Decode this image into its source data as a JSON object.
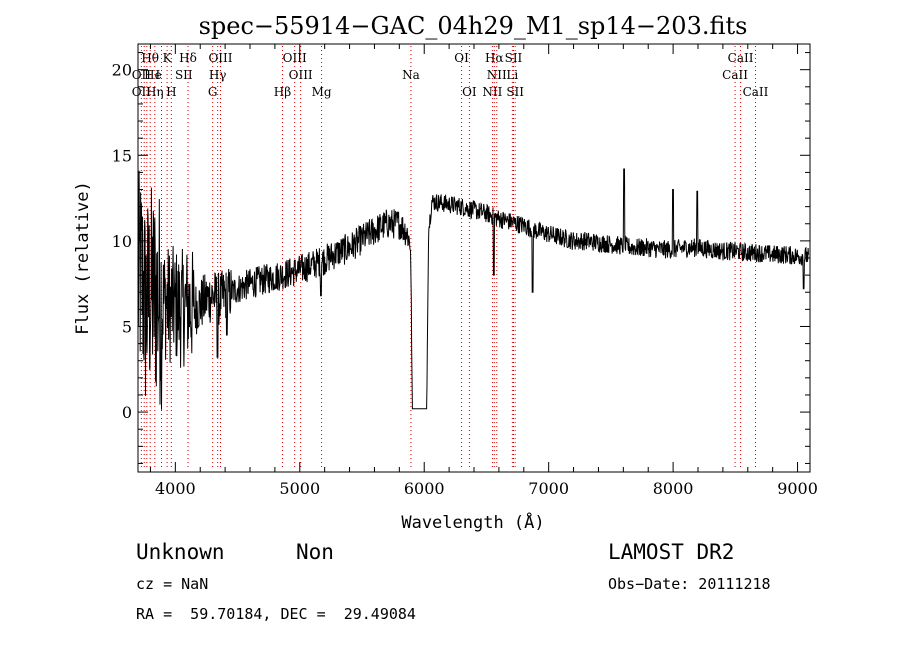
{
  "chart_data": {
    "type": "line",
    "title": "spec−55914−GAC_04h29_M1_sp14−203.fits",
    "xlabel": "Wavelength (Å)",
    "ylabel": "Flux (relative)",
    "xlim": [
      3700,
      9100
    ],
    "ylim": [
      -3.5,
      21.5
    ],
    "x_ticks": [
      4000,
      5000,
      6000,
      7000,
      8000,
      9000
    ],
    "y_ticks": [
      0,
      5,
      10,
      15,
      20
    ],
    "grid": false,
    "line_color": "#000000",
    "marker_line_color": "#cc0000",
    "series": [
      {
        "anchors": [
          [
            3700,
            7.5
          ],
          [
            3730,
            8
          ],
          [
            3760,
            6
          ],
          [
            3800,
            7
          ],
          [
            3850,
            6.8
          ],
          [
            3900,
            6.5
          ],
          [
            3950,
            6.3
          ],
          [
            4000,
            6.2
          ],
          [
            4050,
            6.0
          ],
          [
            4100,
            6.3
          ],
          [
            4150,
            6.0
          ],
          [
            4200,
            6.3
          ],
          [
            4250,
            6.6
          ],
          [
            4300,
            6.8
          ],
          [
            4350,
            6.6
          ],
          [
            4400,
            6.8
          ],
          [
            4500,
            7.2
          ],
          [
            4600,
            7.5
          ],
          [
            4700,
            7.7
          ],
          [
            4800,
            7.9
          ],
          [
            4900,
            8.1
          ],
          [
            5000,
            8.3
          ],
          [
            5100,
            8.6
          ],
          [
            5200,
            8.9
          ],
          [
            5300,
            9.3
          ],
          [
            5400,
            9.6
          ],
          [
            5500,
            10.1
          ],
          [
            5600,
            10.6
          ],
          [
            5700,
            11.0
          ],
          [
            5800,
            11.0
          ],
          [
            5860,
            10.5
          ],
          [
            5890,
            9.8
          ],
          [
            5905,
            0.2
          ],
          [
            6020,
            0.2
          ],
          [
            6035,
            10.5
          ],
          [
            6060,
            12.3
          ],
          [
            6150,
            12.2
          ],
          [
            6300,
            12.0
          ],
          [
            6400,
            11.8
          ],
          [
            6500,
            11.6
          ],
          [
            6600,
            11.3
          ],
          [
            6700,
            11.1
          ],
          [
            6800,
            10.9
          ],
          [
            6900,
            10.6
          ],
          [
            7000,
            10.4
          ],
          [
            7100,
            10.2
          ],
          [
            7200,
            10.0
          ],
          [
            7300,
            10.0
          ],
          [
            7400,
            9.9
          ],
          [
            7500,
            9.8
          ],
          [
            7600,
            9.7
          ],
          [
            7700,
            9.6
          ],
          [
            7800,
            9.6
          ],
          [
            7900,
            9.5
          ],
          [
            8000,
            9.5
          ],
          [
            8100,
            9.6
          ],
          [
            8200,
            9.6
          ],
          [
            8300,
            9.5
          ],
          [
            8400,
            9.4
          ],
          [
            8500,
            9.4
          ],
          [
            8600,
            9.3
          ],
          [
            8700,
            9.3
          ],
          [
            8800,
            9.2
          ],
          [
            8900,
            9.2
          ],
          [
            9000,
            9.1
          ],
          [
            9100,
            9.1
          ]
        ],
        "features": [
          [
            4340,
            3.2
          ],
          [
            4415,
            4.5
          ],
          [
            5170,
            6.8
          ],
          [
            6560,
            8.0
          ],
          [
            6870,
            7.0
          ],
          [
            7605,
            14.2
          ],
          [
            8195,
            12.9
          ],
          [
            8000,
            13.0
          ],
          [
            9050,
            7.2
          ]
        ]
      }
    ],
    "lines": [
      {
        "label": "Hθ",
        "wl": 3798,
        "row": 1
      },
      {
        "label": "K",
        "wl": 3934,
        "row": 1
      },
      {
        "label": "Hδ",
        "wl": 4102,
        "row": 1
      },
      {
        "label": "OIII",
        "wl": 4363,
        "row": 1
      },
      {
        "label": "OIII",
        "wl": 4959,
        "row": 1
      },
      {
        "label": "OI",
        "wl": 6300,
        "row": 1
      },
      {
        "label": "Hα",
        "wl": 6563,
        "row": 1
      },
      {
        "label": "SII",
        "wl": 6717,
        "row": 1
      },
      {
        "label": "CaII",
        "wl": 8542,
        "row": 1
      },
      {
        "label": "OII",
        "wl": 3727,
        "row": 2
      },
      {
        "label": "He",
        "wl": 3820,
        "row": 2
      },
      {
        "label": "I",
        "wl": 3860,
        "row": 2
      },
      {
        "label": "SII",
        "wl": 4068,
        "row": 2
      },
      {
        "label": "Hγ",
        "wl": 4340,
        "row": 2
      },
      {
        "label": "OIII",
        "wl": 5007,
        "row": 2
      },
      {
        "label": "Na",
        "wl": 5893,
        "row": 2
      },
      {
        "label": "NII",
        "wl": 6583,
        "row": 2
      },
      {
        "label": "Li",
        "wl": 6708,
        "row": 2
      },
      {
        "label": "CaII",
        "wl": 8498,
        "row": 2
      },
      {
        "label": "OII",
        "wl": 3727,
        "row": 3
      },
      {
        "label": "Hη",
        "wl": 3835,
        "row": 3
      },
      {
        "label": "H",
        "wl": 3968,
        "row": 3
      },
      {
        "label": "G",
        "wl": 4300,
        "row": 3
      },
      {
        "label": "Hβ",
        "wl": 4861,
        "row": 3
      },
      {
        "label": "Mg",
        "wl": 5175,
        "row": 3
      },
      {
        "label": "OI",
        "wl": 6363,
        "row": 3
      },
      {
        "label": "NII",
        "wl": 6548,
        "row": 3
      },
      {
        "label": "SII",
        "wl": 6731,
        "row": 3
      },
      {
        "label": "CaII",
        "wl": 8662,
        "row": 3
      }
    ],
    "marker_wavelengths": [
      3727,
      3750,
      3771,
      3798,
      3835,
      3889,
      3934,
      3968,
      4102,
      4300,
      4340,
      4363,
      4861,
      4959,
      5007,
      5175,
      5893,
      6300,
      6363,
      6548,
      6563,
      6583,
      6708,
      6717,
      6731,
      8498,
      8542,
      8662
    ]
  },
  "info": {
    "class": "Unknown",
    "subclass": "Non",
    "cz": "cz = NaN",
    "coords": "RA =  59.70184, DEC =  29.49084",
    "survey": "LAMOST DR2",
    "obs_date": "Obs−Date: 20111218"
  }
}
